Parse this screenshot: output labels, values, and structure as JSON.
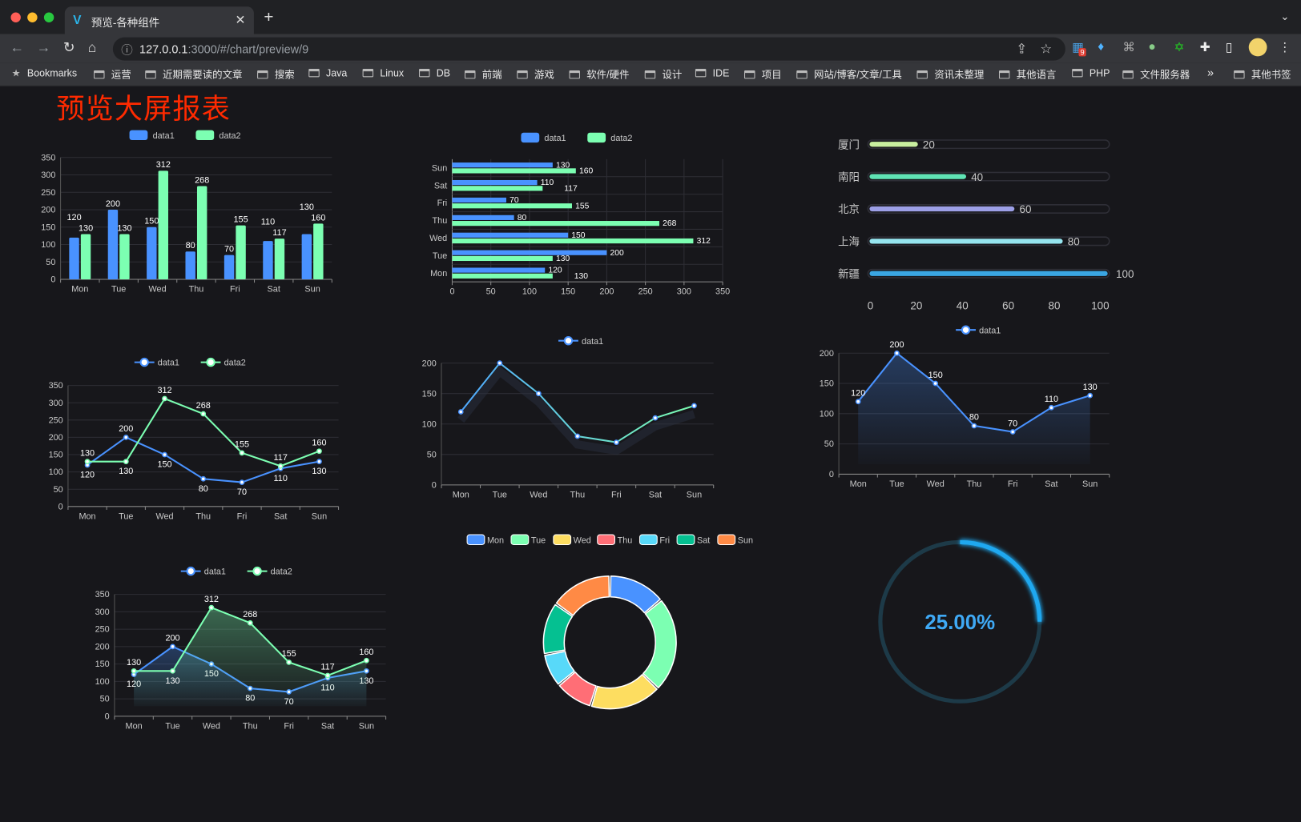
{
  "browser": {
    "tab_title": "预览-各种组件",
    "url_host": "127.0.0.1",
    "url_rest": ":3000/#/chart/preview/9",
    "bookmarks_label": "Bookmarks",
    "bookmarks": [
      "运营",
      "近期需要读的文章",
      "搜索",
      "Java",
      "Linux",
      "DB",
      "前端",
      "游戏",
      "软件/硬件",
      "设计",
      "IDE",
      "项目",
      "网站/博客/文章/工具",
      "资讯未整理",
      "其他语言",
      "PHP",
      "文件服务器"
    ],
    "more_bookmarks": "»",
    "other_bookmarks": "其他书签",
    "extension_badge": "9"
  },
  "page": {
    "title": "预览大屏报表",
    "title_color": "#ff2a00",
    "background": "#17171b"
  },
  "colors": {
    "data1": "#4992ff",
    "data2": "#7cffb2",
    "text": "#cccccc",
    "grid": "#2e2e35"
  },
  "chart_data": [
    {
      "type": "bar",
      "orientation": "vertical",
      "legend": "top",
      "grid": true,
      "categories": [
        "Mon",
        "Tue",
        "Wed",
        "Thu",
        "Fri",
        "Sat",
        "Sun"
      ],
      "series": [
        {
          "name": "data1",
          "values": [
            120,
            200,
            150,
            80,
            70,
            110,
            130
          ]
        },
        {
          "name": "data2",
          "values": [
            130,
            130,
            312,
            268,
            155,
            117,
            160
          ]
        }
      ],
      "ylim": [
        0,
        350
      ],
      "yticks": [
        0,
        50,
        100,
        150,
        200,
        250,
        300,
        350
      ]
    },
    {
      "type": "bar",
      "orientation": "horizontal",
      "legend": "top",
      "grid": true,
      "categories": [
        "Mon",
        "Tue",
        "Wed",
        "Thu",
        "Fri",
        "Sat",
        "Sun"
      ],
      "series": [
        {
          "name": "data1",
          "values": [
            120,
            200,
            150,
            80,
            70,
            110,
            130
          ]
        },
        {
          "name": "data2",
          "values": [
            130,
            130,
            312,
            268,
            155,
            117,
            160
          ]
        }
      ],
      "xlim": [
        0,
        350
      ],
      "xticks": [
        0,
        50,
        100,
        150,
        200,
        250,
        300,
        350
      ]
    },
    {
      "type": "bar",
      "orientation": "horizontal",
      "style": "progress",
      "categories": [
        "厦门",
        "南阳",
        "北京",
        "上海",
        "新疆"
      ],
      "values": [
        20,
        40,
        60,
        80,
        100
      ],
      "bar_colors": [
        "#c9ef9f",
        "#5fe3b4",
        "#9c9fe6",
        "#96e5ef",
        "#3aa6e3"
      ],
      "xlim": [
        0,
        100
      ],
      "xticks": [
        0,
        20,
        40,
        60,
        80,
        100
      ]
    },
    {
      "type": "line",
      "legend": "top",
      "grid": true,
      "categories": [
        "Mon",
        "Tue",
        "Wed",
        "Thu",
        "Fri",
        "Sat",
        "Sun"
      ],
      "series": [
        {
          "name": "data1",
          "values": [
            120,
            200,
            150,
            80,
            70,
            110,
            130
          ]
        },
        {
          "name": "data2",
          "values": [
            130,
            130,
            312,
            268,
            155,
            117,
            160
          ]
        }
      ],
      "ylim": [
        0,
        350
      ],
      "yticks": [
        0,
        50,
        100,
        150,
        200,
        250,
        300,
        350
      ]
    },
    {
      "type": "line",
      "legend": "top",
      "grid": true,
      "gradient_line": true,
      "categories": [
        "Mon",
        "Tue",
        "Wed",
        "Thu",
        "Fri",
        "Sat",
        "Sun"
      ],
      "series": [
        {
          "name": "data1",
          "values": [
            120,
            200,
            150,
            80,
            70,
            110,
            130
          ]
        }
      ],
      "ylim": [
        0,
        200
      ],
      "yticks": [
        0,
        50,
        100,
        150,
        200
      ]
    },
    {
      "type": "area",
      "legend": "top",
      "grid": true,
      "categories": [
        "Mon",
        "Tue",
        "Wed",
        "Thu",
        "Fri",
        "Sat",
        "Sun"
      ],
      "series": [
        {
          "name": "data1",
          "values": [
            120,
            200,
            150,
            80,
            70,
            110,
            130
          ]
        }
      ],
      "ylim": [
        0,
        200
      ],
      "yticks": [
        0,
        50,
        100,
        150,
        200
      ]
    },
    {
      "type": "area",
      "legend": "top",
      "grid": true,
      "categories": [
        "Mon",
        "Tue",
        "Wed",
        "Thu",
        "Fri",
        "Sat",
        "Sun"
      ],
      "series": [
        {
          "name": "data1",
          "values": [
            120,
            200,
            150,
            80,
            70,
            110,
            130
          ]
        },
        {
          "name": "data2",
          "values": [
            130,
            130,
            312,
            268,
            155,
            117,
            160
          ]
        }
      ],
      "ylim": [
        0,
        350
      ],
      "yticks": [
        0,
        50,
        100,
        150,
        200,
        250,
        300,
        350
      ]
    },
    {
      "type": "pie",
      "style": "donut",
      "legend": "top",
      "categories": [
        "Mon",
        "Tue",
        "Wed",
        "Thu",
        "Fri",
        "Sat",
        "Sun"
      ],
      "values": [
        120,
        200,
        150,
        80,
        70,
        110,
        130
      ],
      "slice_colors": [
        "#4992ff",
        "#7cffb2",
        "#fddd60",
        "#ff6e76",
        "#58d9f9",
        "#05c091",
        "#ff8a45"
      ]
    },
    {
      "type": "gauge",
      "style": "ring",
      "value": 0.25,
      "label": "25.00%",
      "color": "#1fa8f0",
      "track_color": "#1d3a48"
    }
  ]
}
